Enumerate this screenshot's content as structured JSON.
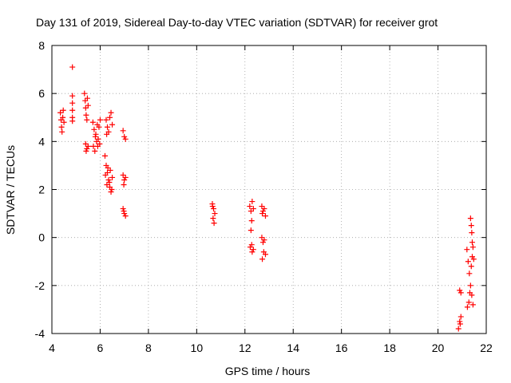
{
  "chart_data": {
    "type": "scatter",
    "title": "Day 131 of 2019, Sidereal Day-to-day VTEC variation (SDTVAR) for receiver grot",
    "xlabel": "GPS time / hours",
    "ylabel": "SDTVAR / TECUs",
    "xlim": [
      4,
      22
    ],
    "ylim": [
      -4,
      8
    ],
    "xticks": [
      4,
      6,
      8,
      10,
      12,
      14,
      16,
      18,
      20,
      22
    ],
    "yticks": [
      -4,
      -2,
      0,
      2,
      4,
      6,
      8
    ],
    "grid": true,
    "marker": "+",
    "series": [
      {
        "name": "SDTVAR",
        "color": "#ff0000",
        "points": [
          [
            4.35,
            5.2
          ],
          [
            4.38,
            4.9
          ],
          [
            4.4,
            4.6
          ],
          [
            4.42,
            4.4
          ],
          [
            4.45,
            5.0
          ],
          [
            4.47,
            5.3
          ],
          [
            4.5,
            4.8
          ],
          [
            4.85,
            7.1
          ],
          [
            4.85,
            5.9
          ],
          [
            4.85,
            5.6
          ],
          [
            4.85,
            5.3
          ],
          [
            4.85,
            5.0
          ],
          [
            4.85,
            4.85
          ],
          [
            5.35,
            6.0
          ],
          [
            5.38,
            5.7
          ],
          [
            5.4,
            5.4
          ],
          [
            5.42,
            5.1
          ],
          [
            5.45,
            4.9
          ],
          [
            5.47,
            5.8
          ],
          [
            5.5,
            5.5
          ],
          [
            5.4,
            3.9
          ],
          [
            5.45,
            3.7
          ],
          [
            5.5,
            3.8
          ],
          [
            5.42,
            3.6
          ],
          [
            5.7,
            4.8
          ],
          [
            5.75,
            4.5
          ],
          [
            5.8,
            4.2
          ],
          [
            5.85,
            4.0
          ],
          [
            5.9,
            3.8
          ],
          [
            5.95,
            4.6
          ],
          [
            6.0,
            4.9
          ],
          [
            5.72,
            3.8
          ],
          [
            5.78,
            3.6
          ],
          [
            5.82,
            4.3
          ],
          [
            5.88,
            4.7
          ],
          [
            5.92,
            4.1
          ],
          [
            5.98,
            3.9
          ],
          [
            6.2,
            3.4
          ],
          [
            6.25,
            3.0
          ],
          [
            6.3,
            2.7
          ],
          [
            6.35,
            2.4
          ],
          [
            6.4,
            2.1
          ],
          [
            6.45,
            1.9
          ],
          [
            6.5,
            2.5
          ],
          [
            6.22,
            2.6
          ],
          [
            6.28,
            2.2
          ],
          [
            6.32,
            2.9
          ],
          [
            6.38,
            2.3
          ],
          [
            6.42,
            2.8
          ],
          [
            6.48,
            2.0
          ],
          [
            6.25,
            4.9
          ],
          [
            6.3,
            4.6
          ],
          [
            6.35,
            4.4
          ],
          [
            6.4,
            5.0
          ],
          [
            6.45,
            5.2
          ],
          [
            6.5,
            4.7
          ],
          [
            6.27,
            4.3
          ],
          [
            6.95,
            4.45
          ],
          [
            7.0,
            4.2
          ],
          [
            7.05,
            4.1
          ],
          [
            6.95,
            2.6
          ],
          [
            7.0,
            2.4
          ],
          [
            7.05,
            2.5
          ],
          [
            6.98,
            2.2
          ],
          [
            6.95,
            1.2
          ],
          [
            7.0,
            1.0
          ],
          [
            7.05,
            0.9
          ],
          [
            6.98,
            1.1
          ],
          [
            10.65,
            1.4
          ],
          [
            10.7,
            1.2
          ],
          [
            10.75,
            1.0
          ],
          [
            10.68,
            0.8
          ],
          [
            10.72,
            0.6
          ],
          [
            10.66,
            1.3
          ],
          [
            12.2,
            1.3
          ],
          [
            12.25,
            1.1
          ],
          [
            12.3,
            1.5
          ],
          [
            12.35,
            1.2
          ],
          [
            12.28,
            0.7
          ],
          [
            12.25,
            0.3
          ],
          [
            12.28,
            -0.3
          ],
          [
            12.3,
            -0.6
          ],
          [
            12.35,
            -0.5
          ],
          [
            12.22,
            -0.4
          ],
          [
            12.7,
            1.3
          ],
          [
            12.75,
            1.1
          ],
          [
            12.8,
            1.2
          ],
          [
            12.85,
            0.9
          ],
          [
            12.72,
            1.0
          ],
          [
            12.7,
            0.0
          ],
          [
            12.75,
            -0.2
          ],
          [
            12.8,
            -0.1
          ],
          [
            12.85,
            -0.7
          ],
          [
            12.72,
            -0.9
          ],
          [
            12.78,
            -0.6
          ],
          [
            20.85,
            -3.8
          ],
          [
            20.9,
            -3.5
          ],
          [
            20.95,
            -3.3
          ],
          [
            20.92,
            -3.6
          ],
          [
            20.9,
            -2.2
          ],
          [
            20.95,
            -2.3
          ],
          [
            21.2,
            -0.5
          ],
          [
            21.25,
            -1.0
          ],
          [
            21.3,
            -1.5
          ],
          [
            21.35,
            -2.0
          ],
          [
            21.4,
            -2.4
          ],
          [
            21.45,
            -2.8
          ],
          [
            21.22,
            -2.9
          ],
          [
            21.28,
            -2.7
          ],
          [
            21.32,
            -2.3
          ],
          [
            21.38,
            -1.2
          ],
          [
            21.42,
            -0.8
          ],
          [
            21.35,
            0.8
          ],
          [
            21.38,
            0.5
          ],
          [
            21.4,
            0.2
          ],
          [
            21.42,
            -0.2
          ],
          [
            21.45,
            -0.4
          ],
          [
            21.48,
            -0.9
          ]
        ]
      }
    ]
  }
}
